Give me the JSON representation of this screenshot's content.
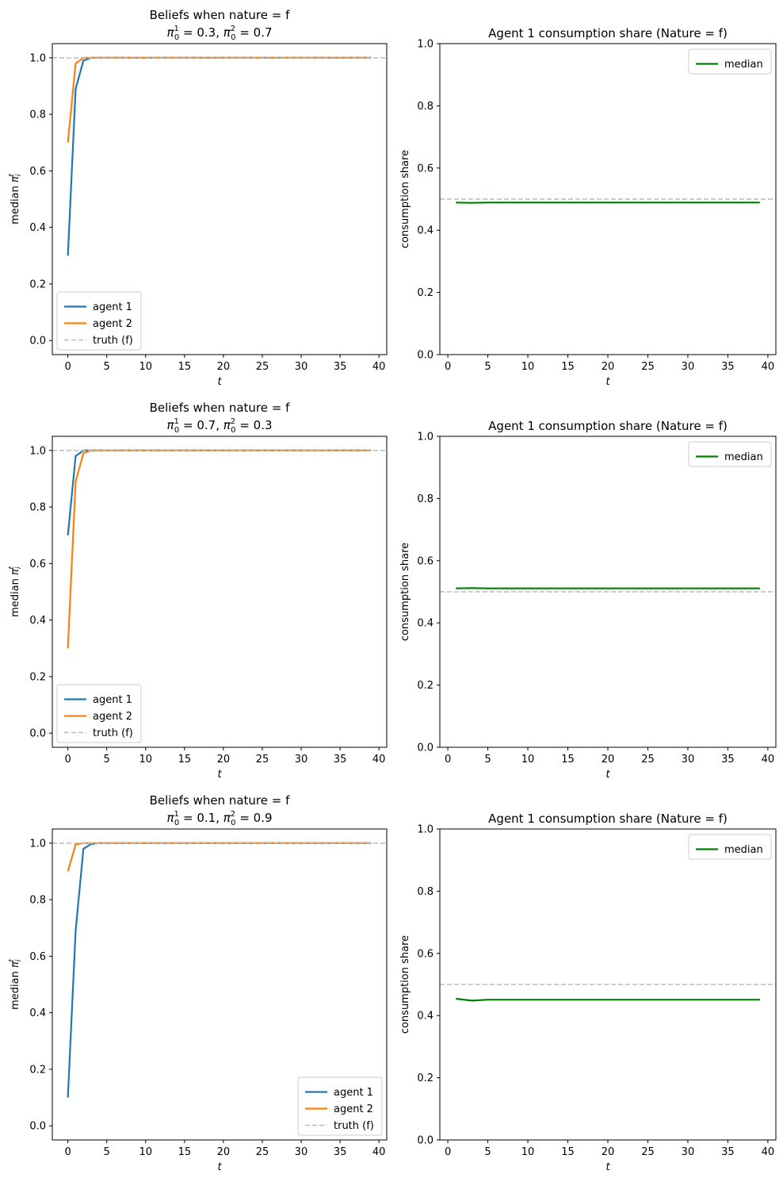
{
  "figure": {
    "layout": "3 rows x 2 columns"
  },
  "chart_data": [
    {
      "type": "line",
      "title_line1": "Beliefs when nature = f",
      "title_math": {
        "p1": "0.3",
        "p2": "0.7"
      },
      "xlabel": "t",
      "ylabel": "median",
      "xlim": [
        -2,
        41
      ],
      "ylim": [
        -0.05,
        1.05
      ],
      "xticks": [
        0,
        5,
        10,
        15,
        20,
        25,
        30,
        35,
        40
      ],
      "yticks": [
        0.0,
        0.2,
        0.4,
        0.6,
        0.8,
        1.0
      ],
      "ytick_labels": [
        "0.0",
        "0.2",
        "0.4",
        "0.6",
        "0.8",
        "1.0"
      ],
      "legend_position": "lower-left",
      "series": [
        {
          "name": "agent 1",
          "color": "#1f77b4",
          "style": "solid",
          "x": [
            0,
            1,
            2,
            3,
            4,
            39
          ],
          "y": [
            0.3,
            0.89,
            0.99,
            1.0,
            1.0,
            1.0
          ]
        },
        {
          "name": "agent 2",
          "color": "#ff7f0e",
          "style": "solid",
          "x": [
            0,
            1,
            2,
            3,
            4,
            39
          ],
          "y": [
            0.7,
            0.98,
            1.0,
            1.0,
            1.0,
            1.0
          ]
        },
        {
          "name": "truth (f)",
          "color": "#bbbbbb",
          "style": "dashed",
          "hline": 1.0
        }
      ]
    },
    {
      "type": "line",
      "title_line1": "Agent 1 consumption share (Nature = f)",
      "xlabel": "t",
      "ylabel": "consumption share",
      "xlim": [
        -1,
        41
      ],
      "ylim": [
        0,
        1
      ],
      "xticks": [
        0,
        5,
        10,
        15,
        20,
        25,
        30,
        35,
        40
      ],
      "yticks": [
        0.0,
        0.2,
        0.4,
        0.6,
        0.8,
        1.0
      ],
      "ytick_labels": [
        "0.0",
        "0.2",
        "0.4",
        "0.6",
        "0.8",
        "1.0"
      ],
      "legend_position": "upper-right",
      "series": [
        {
          "name": "median",
          "color": "#008000",
          "style": "solid",
          "x": [
            1,
            3,
            5,
            39
          ],
          "y": [
            0.489,
            0.488,
            0.489,
            0.489
          ]
        },
        {
          "color": "#bbbbbb",
          "style": "dashed",
          "hline": 0.5
        }
      ]
    },
    {
      "type": "line",
      "title_line1": "Beliefs when nature = f",
      "title_math": {
        "p1": "0.7",
        "p2": "0.3"
      },
      "xlabel": "t",
      "ylabel": "median",
      "xlim": [
        -2,
        41
      ],
      "ylim": [
        -0.05,
        1.05
      ],
      "xticks": [
        0,
        5,
        10,
        15,
        20,
        25,
        30,
        35,
        40
      ],
      "yticks": [
        0.0,
        0.2,
        0.4,
        0.6,
        0.8,
        1.0
      ],
      "ytick_labels": [
        "0.0",
        "0.2",
        "0.4",
        "0.6",
        "0.8",
        "1.0"
      ],
      "legend_position": "lower-left",
      "series": [
        {
          "name": "agent 1",
          "color": "#1f77b4",
          "style": "solid",
          "x": [
            0,
            1,
            2,
            3,
            4,
            39
          ],
          "y": [
            0.7,
            0.98,
            1.0,
            1.0,
            1.0,
            1.0
          ]
        },
        {
          "name": "agent 2",
          "color": "#ff7f0e",
          "style": "solid",
          "x": [
            0,
            1,
            2,
            3,
            4,
            39
          ],
          "y": [
            0.3,
            0.89,
            0.99,
            1.0,
            1.0,
            1.0
          ]
        },
        {
          "name": "truth (f)",
          "color": "#bbbbbb",
          "style": "dashed",
          "hline": 1.0
        }
      ]
    },
    {
      "type": "line",
      "title_line1": "Agent 1 consumption share (Nature = f)",
      "xlabel": "t",
      "ylabel": "consumption share",
      "xlim": [
        -1,
        41
      ],
      "ylim": [
        0,
        1
      ],
      "xticks": [
        0,
        5,
        10,
        15,
        20,
        25,
        30,
        35,
        40
      ],
      "yticks": [
        0.0,
        0.2,
        0.4,
        0.6,
        0.8,
        1.0
      ],
      "ytick_labels": [
        "0.0",
        "0.2",
        "0.4",
        "0.6",
        "0.8",
        "1.0"
      ],
      "legend_position": "upper-right",
      "series": [
        {
          "name": "median",
          "color": "#008000",
          "style": "solid",
          "x": [
            1,
            3,
            5,
            39
          ],
          "y": [
            0.511,
            0.512,
            0.511,
            0.511
          ]
        },
        {
          "color": "#bbbbbb",
          "style": "dashed",
          "hline": 0.5
        }
      ]
    },
    {
      "type": "line",
      "title_line1": "Beliefs when nature = f",
      "title_math": {
        "p1": "0.1",
        "p2": "0.9"
      },
      "xlabel": "t",
      "ylabel": "median",
      "xlim": [
        -2,
        41
      ],
      "ylim": [
        -0.05,
        1.05
      ],
      "xticks": [
        0,
        5,
        10,
        15,
        20,
        25,
        30,
        35,
        40
      ],
      "yticks": [
        0.0,
        0.2,
        0.4,
        0.6,
        0.8,
        1.0
      ],
      "ytick_labels": [
        "0.0",
        "0.2",
        "0.4",
        "0.6",
        "0.8",
        "1.0"
      ],
      "legend_position": "lower-right",
      "series": [
        {
          "name": "agent 1",
          "color": "#1f77b4",
          "style": "solid",
          "x": [
            0,
            1,
            2,
            3,
            4,
            39
          ],
          "y": [
            0.1,
            0.69,
            0.98,
            0.997,
            1.0,
            1.0
          ]
        },
        {
          "name": "agent 2",
          "color": "#ff7f0e",
          "style": "solid",
          "x": [
            0,
            1,
            2,
            3,
            4,
            39
          ],
          "y": [
            0.9,
            0.995,
            1.0,
            1.0,
            1.0,
            1.0
          ]
        },
        {
          "name": "truth (f)",
          "color": "#bbbbbb",
          "style": "dashed",
          "hline": 1.0
        }
      ]
    },
    {
      "type": "line",
      "title_line1": "Agent 1 consumption share (Nature = f)",
      "xlabel": "t",
      "ylabel": "consumption share",
      "xlim": [
        -1,
        41
      ],
      "ylim": [
        0,
        1
      ],
      "xticks": [
        0,
        5,
        10,
        15,
        20,
        25,
        30,
        35,
        40
      ],
      "yticks": [
        0.0,
        0.2,
        0.4,
        0.6,
        0.8,
        1.0
      ],
      "ytick_labels": [
        "0.0",
        "0.2",
        "0.4",
        "0.6",
        "0.8",
        "1.0"
      ],
      "legend_position": "upper-right",
      "series": [
        {
          "name": "median",
          "color": "#008000",
          "style": "solid",
          "x": [
            1,
            3,
            5,
            39
          ],
          "y": [
            0.454,
            0.448,
            0.451,
            0.451
          ]
        },
        {
          "color": "#bbbbbb",
          "style": "dashed",
          "hline": 0.5
        }
      ]
    }
  ]
}
